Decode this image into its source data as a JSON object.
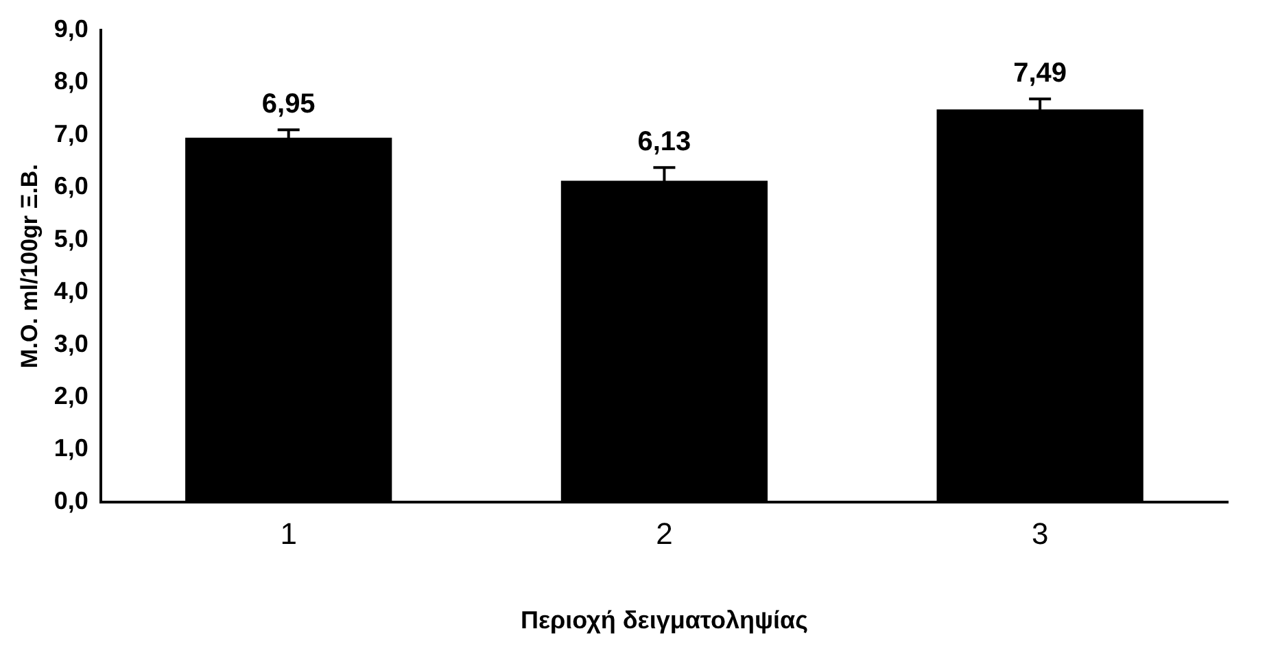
{
  "chart_data": {
    "type": "bar",
    "xlabel": "Περιοχή δειγματοληψίας",
    "ylabel": "M.O. ml/100gr Ξ.Β.",
    "categories": [
      "1",
      "2",
      "3"
    ],
    "values": [
      6.95,
      6.13,
      7.49
    ],
    "errors": [
      0.15,
      0.25,
      0.2
    ],
    "value_labels": [
      "6,95",
      "6,13",
      "7,49"
    ],
    "color": "#000000",
    "ylim": [
      0,
      9
    ],
    "yticks": [
      {
        "value": 0,
        "label": "0,0"
      },
      {
        "value": 1,
        "label": "1,0"
      },
      {
        "value": 2,
        "label": "2,0"
      },
      {
        "value": 3,
        "label": "3,0"
      },
      {
        "value": 4,
        "label": "4,0"
      },
      {
        "value": 5,
        "label": "5,0"
      },
      {
        "value": 6,
        "label": "6,0"
      },
      {
        "value": 7,
        "label": "7,0"
      },
      {
        "value": 8,
        "label": "8,0"
      },
      {
        "value": 9,
        "label": "9,0"
      }
    ],
    "grid": false,
    "legend": false
  }
}
